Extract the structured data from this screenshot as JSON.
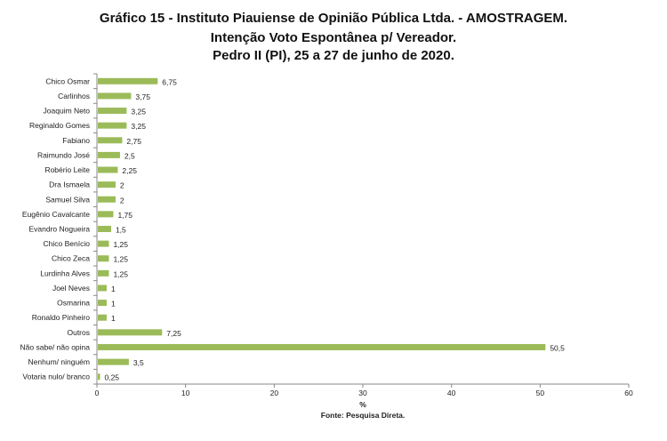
{
  "chart_data": {
    "type": "bar",
    "orientation": "horizontal",
    "title": [
      "Gráfico  15  - Instituto Piauiense de Opinião Pública Ltda. - AMOSTRAGEM.",
      "Intenção Voto Espontânea p/ Vereador.",
      "Pedro II (PI), 25 a 27 de junho de 2020."
    ],
    "categories": [
      "Chico Osmar",
      "Carlinhos",
      "Joaquim Neto",
      "Reginaldo Gomes",
      "Fabiano",
      "Raimundo José",
      "Robério Leite",
      "Dra Ismaela",
      "Samuel Silva",
      "Eugênio Cavalcante",
      "Evandro Nogueira",
      "Chico Benício",
      "Chico Zeca",
      "Lurdinha Alves",
      "Joel Neves",
      "Osmarina",
      "Ronaldo Pinheiro",
      "Outros",
      "Não sabe/ não opina",
      "Nenhum/ ninguém",
      "Votaria nulo/ branco"
    ],
    "values": [
      6.75,
      3.75,
      3.25,
      3.25,
      2.75,
      2.5,
      2.25,
      2,
      2,
      1.75,
      1.5,
      1.25,
      1.25,
      1.25,
      1,
      1,
      1,
      7.25,
      50.5,
      3.5,
      0.25
    ],
    "value_labels": [
      "6,75",
      "3,75",
      "3,25",
      "3,25",
      "2,75",
      "2,5",
      "2,25",
      "2",
      "2",
      "1,75",
      "1,5",
      "1,25",
      "1,25",
      "1,25",
      "1",
      "1",
      "1",
      "7,25",
      "50,5",
      "3,5",
      "0,25"
    ],
    "xlabel": "%",
    "xlim": [
      0,
      60
    ],
    "xticks": [
      "0",
      "10",
      "20",
      "30",
      "40",
      "50",
      "60"
    ],
    "source": "Fonte: Pesquisa Direta.",
    "grid": false,
    "bar_color": "#9bbb59"
  }
}
